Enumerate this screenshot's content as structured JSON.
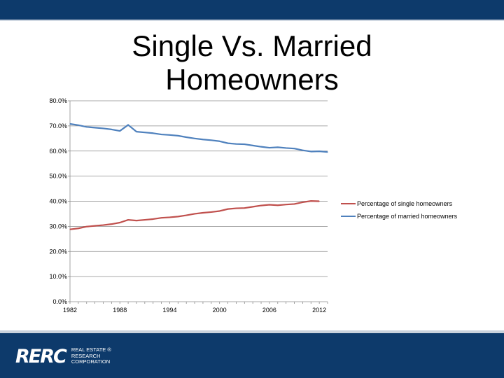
{
  "slide": {
    "title_line1": "Single Vs. Married",
    "title_line2": "Homeowners"
  },
  "footer": {
    "logo_mark": "RERC",
    "logo_line1": "REAL ESTATE ®",
    "logo_line2": "RESEARCH",
    "logo_line3": "CORPORATION"
  },
  "colors": {
    "header_bar": "#0d3a6b",
    "single_series": "#c0504d",
    "married_series": "#4f81bd"
  },
  "chart_data": {
    "type": "line",
    "title": "",
    "xlabel": "",
    "ylabel": "",
    "ylim": [
      0,
      80
    ],
    "xlim": [
      1982,
      2013
    ],
    "y_ticks": [
      "0.0%",
      "10.0%",
      "20.0%",
      "30.0%",
      "40.0%",
      "50.0%",
      "60.0%",
      "70.0%",
      "80.0%"
    ],
    "x_ticks": [
      "1982",
      "1988",
      "1994",
      "2000",
      "2006",
      "2012"
    ],
    "grid": true,
    "legend_position": "right",
    "x": [
      1982,
      1983,
      1984,
      1985,
      1986,
      1987,
      1988,
      1989,
      1990,
      1991,
      1992,
      1993,
      1994,
      1995,
      1996,
      1997,
      1998,
      1999,
      2000,
      2001,
      2002,
      2003,
      2004,
      2005,
      2006,
      2007,
      2008,
      2009,
      2010,
      2011,
      2012,
      2013
    ],
    "series": [
      {
        "name": "Percentage of single homeowners",
        "values": [
          28.8,
          29.2,
          29.9,
          30.2,
          30.5,
          30.9,
          31.5,
          32.6,
          32.3,
          32.6,
          32.9,
          33.4,
          33.6,
          33.9,
          34.4,
          35.0,
          35.4,
          35.7,
          36.1,
          36.9,
          37.2,
          37.3,
          37.8,
          38.3,
          38.6,
          38.4,
          38.7,
          38.9,
          39.6,
          40.1,
          40.0,
          null
        ]
      },
      {
        "name": "Percentage of married homeowners",
        "values": [
          70.8,
          70.3,
          69.6,
          69.3,
          69.0,
          68.6,
          68.0,
          70.4,
          67.7,
          67.4,
          67.1,
          66.6,
          66.4,
          66.1,
          65.5,
          65.0,
          64.6,
          64.3,
          63.9,
          63.1,
          62.8,
          62.7,
          62.2,
          61.7,
          61.3,
          61.5,
          61.2,
          61.0,
          60.3,
          59.8,
          59.9,
          59.6
        ]
      }
    ]
  }
}
